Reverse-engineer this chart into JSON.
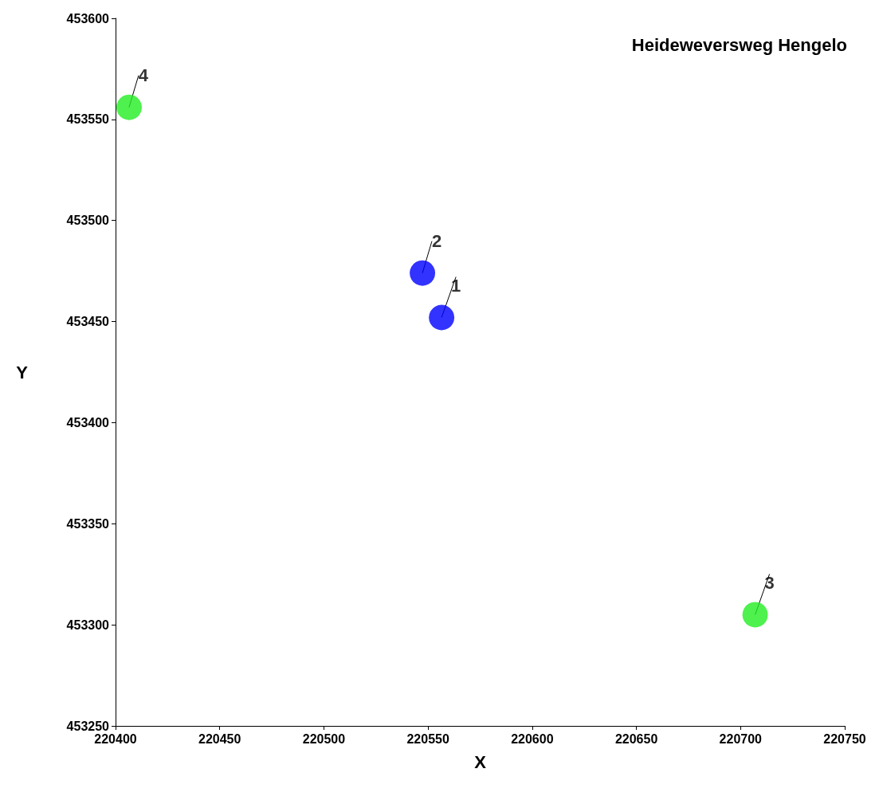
{
  "chart_data": {
    "type": "scatter",
    "title": "Heideweversweg Hengelo",
    "xlabel": "X",
    "ylabel": "Y",
    "series": [
      {
        "color": "#0000ff",
        "x": [
          220556.5,
          220547.3
        ],
        "values": [
          453452,
          453474
        ]
      },
      {
        "color": "#22ee22",
        "x": [
          220707,
          220406.5
        ],
        "values": [
          453305,
          453556
        ]
      }
    ],
    "annotations": [
      {
        "text": "1",
        "x": 220556.5,
        "y": 453452
      },
      {
        "text": "2",
        "x": 220547.3,
        "y": 453474
      },
      {
        "text": "3",
        "x": 220707,
        "y": 453305
      },
      {
        "text": "4",
        "x": 220406.5,
        "y": 453556
      }
    ],
    "xlim": [
      220400,
      220750
    ],
    "xticks": [
      220400,
      220450,
      220500,
      220550,
      220600,
      220650,
      220700,
      220750
    ],
    "ylim": [
      453250,
      453600
    ],
    "yticks": [
      453250,
      453300,
      453350,
      453400,
      453450,
      453500,
      453550,
      453600
    ],
    "grid": false,
    "marker": "circle"
  }
}
